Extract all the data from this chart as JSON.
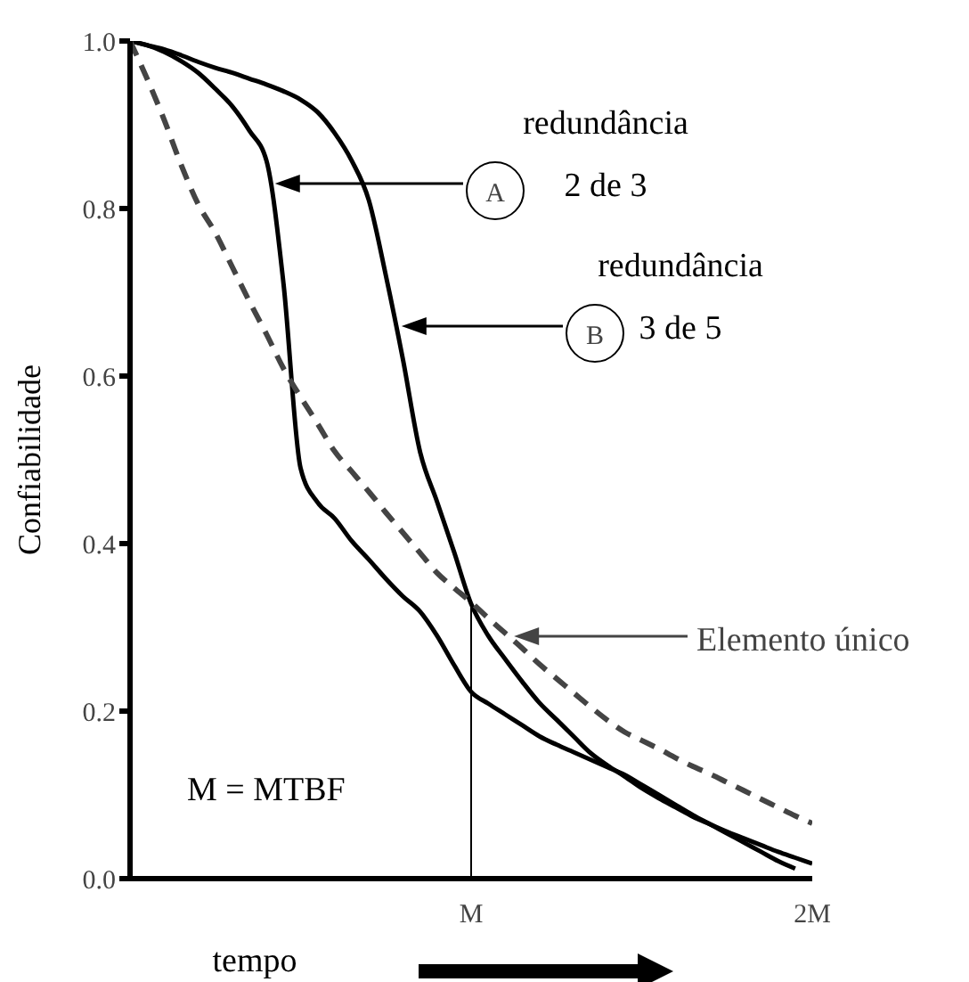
{
  "chart_data": {
    "type": "line",
    "xlabel": "tempo",
    "ylabel": "Confiabilidade",
    "categories": [
      null,
      null,
      null,
      null,
      null,
      null,
      null,
      null,
      null,
      null,
      null,
      null,
      null,
      null,
      null,
      null,
      null,
      null,
      null,
      null,
      "M",
      null,
      null,
      null,
      null,
      null,
      null,
      null,
      null,
      null,
      null,
      null,
      null,
      null,
      null,
      null,
      null,
      null,
      null,
      null,
      "2M"
    ],
    "ylim": [
      0,
      1
    ],
    "yticks": [
      {
        "value": 0,
        "label": "0.0"
      },
      0.2,
      0.4,
      0.6,
      0.8,
      {
        "value": 1,
        "label": "1.0"
      }
    ],
    "grid": false,
    "legend": "right",
    "marker": "none",
    "ref_lines": [
      {
        "axis": "x",
        "value": "M",
        "color": "#000000"
      }
    ],
    "annotations": [
      "A",
      "redundância 2 de 3",
      "B",
      "redundância 3 de 5",
      "M = MTBF"
    ],
    "series": [
      {
        "color": "#000000",
        "line_style": "solid",
        "values": [
          1,
          0.995,
          0.987,
          0.976,
          0.962,
          0.943,
          0.922,
          0.893,
          0.857,
          0.71,
          0.49,
          0.449,
          0.43,
          0.403,
          0.381,
          0.358,
          0.337,
          0.319,
          0.29,
          0.255,
          0.223,
          0.209,
          0.196,
          0.183,
          0.17,
          0.16,
          0.151,
          0.142,
          0.133,
          0.124,
          0.112,
          0.1,
          0.088,
          0.076,
          0.065,
          0.054,
          0.043,
          0.032,
          0.021,
          0.012,
          null
        ]
      },
      {
        "color": "#000000",
        "line_style": "solid",
        "values": [
          1,
          0.995,
          0.99,
          0.983,
          0.975,
          0.968,
          0.962,
          0.955,
          0.948,
          0.94,
          0.93,
          0.915,
          0.89,
          0.857,
          0.81,
          0.72,
          0.62,
          0.51,
          0.45,
          0.39,
          0.328,
          0.29,
          0.262,
          0.235,
          0.21,
          0.19,
          0.17,
          0.15,
          0.135,
          0.122,
          0.108,
          0.096,
          0.085,
          0.074,
          0.065,
          0.056,
          0.048,
          0.04,
          0.032,
          0.025,
          0.018
        ]
      },
      {
        "name": "Elemento único",
        "color": "#444444",
        "line_style": "dashed",
        "values": [
          1,
          0.955,
          0.906,
          0.852,
          0.805,
          0.771,
          0.73,
          0.689,
          0.65,
          0.609,
          0.575,
          0.543,
          0.51,
          0.486,
          0.462,
          0.437,
          0.413,
          0.389,
          0.365,
          0.347,
          0.33,
          0.311,
          0.293,
          0.275,
          0.256,
          0.239,
          0.222,
          0.205,
          0.189,
          0.175,
          0.165,
          0.155,
          0.144,
          0.134,
          0.125,
          0.115,
          0.105,
          0.095,
          0.085,
          0.075,
          0.066
        ]
      }
    ]
  }
}
